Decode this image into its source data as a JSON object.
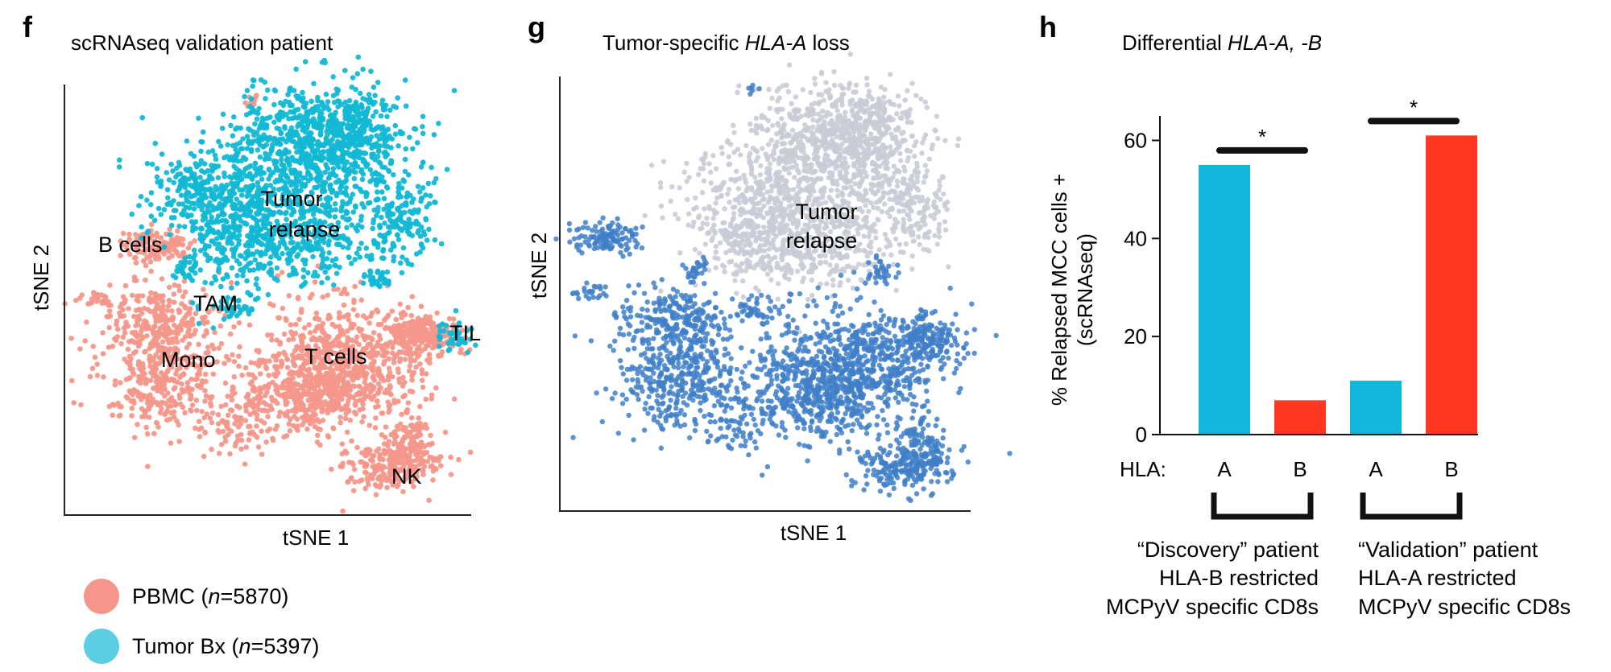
{
  "colors": {
    "pbmc": "#F4978A",
    "tumor": "#12B8D4",
    "gray": "#C9CCD6",
    "blue": "#3F7FC8",
    "red": "#FF3822",
    "cyan": "#11B7DA"
  },
  "panel_f": {
    "letter": "f",
    "title": "scRNAseq validation patient",
    "xlabel": "tSNE 1",
    "ylabel": "tSNE 2",
    "clusters": [
      "Tumor",
      "relapse",
      "B cells",
      "TAM",
      "Mono",
      "T cells",
      "TIL",
      "NK"
    ]
  },
  "panel_g": {
    "letter": "g",
    "title_pre": "Tumor-specific ",
    "title_gene": "HLA-A",
    "title_post": " loss",
    "xlabel": "tSNE 1",
    "ylabel": "tSNE 2",
    "cluster_line1": "Tumor",
    "cluster_line2": "relapse"
  },
  "legend": {
    "pbmc_name": "PBMC (",
    "pbmc_n": "n",
    "pbmc_count": "=5870)",
    "tumor_name": "Tumor Bx (",
    "tumor_n": "n",
    "tumor_count": "=5397)"
  },
  "panel_h": {
    "letter": "h",
    "title_pre": "Differential ",
    "title_gene": "HLA-A, -B",
    "hla_label": "HLA:",
    "star": "*",
    "groups": [
      {
        "line1": "“Discovery” patient",
        "line2": "HLA-B restricted",
        "line3": "MCPyV specific CD8s"
      },
      {
        "line1": "“Validation” patient",
        "line2": "HLA-A restricted",
        "line3": "MCPyV specific CD8s"
      }
    ]
  },
  "chart_data": {
    "type": "bar",
    "ylabel": "% Relapsed MCC cells + (scRNAseq)",
    "ylabel_line1": "% Relapsed MCC cells +",
    "ylabel_line2": "(scRNAseq)",
    "categories": [
      "A",
      "B",
      "A",
      "B"
    ],
    "values": [
      55,
      7,
      11,
      61
    ],
    "bar_colors": [
      "#11B7DA",
      "#FF3822",
      "#11B7DA",
      "#FF3822"
    ],
    "ylim": [
      0,
      65
    ],
    "yticks": [
      0,
      20,
      40,
      60
    ],
    "significance": [
      "*",
      "*"
    ]
  }
}
